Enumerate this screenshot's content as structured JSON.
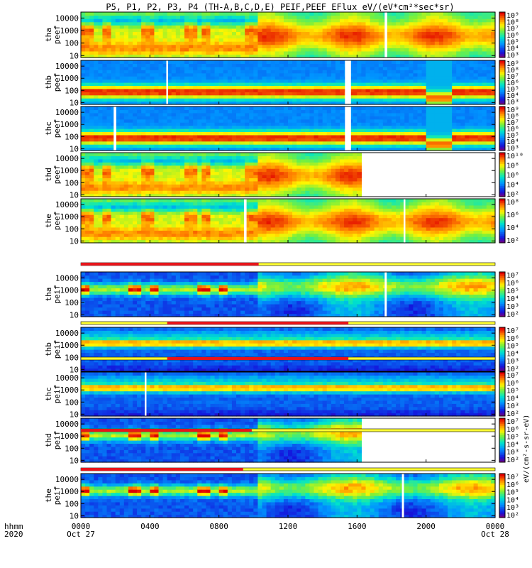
{
  "chart_data": {
    "type": "heatmap",
    "title": "P5, P1, P2, P3, P4 (TH-A,B,C,D,E) PEIF,PEEF EFlux eV/(eV*cm²*sec*sr)",
    "x_axis": {
      "label_line1": "hhmm",
      "label_line2": "2020",
      "range_hours": [
        0,
        24
      ],
      "ticks": [
        {
          "hour": 0,
          "label": "0000",
          "sub": "Oct 27"
        },
        {
          "hour": 4,
          "label": "0400",
          "sub": ""
        },
        {
          "hour": 8,
          "label": "0800",
          "sub": ""
        },
        {
          "hour": 12,
          "label": "1200",
          "sub": ""
        },
        {
          "hour": 16,
          "label": "1600",
          "sub": ""
        },
        {
          "hour": 20,
          "label": "2000",
          "sub": ""
        },
        {
          "hour": 24,
          "label": "0000",
          "sub": "Oct 28"
        }
      ]
    },
    "y_axis": {
      "scale": "log",
      "range_eV": [
        7,
        30000
      ],
      "ticks": [
        {
          "value": 10,
          "label": "10"
        },
        {
          "value": 100,
          "label": "100"
        },
        {
          "value": 1000,
          "label": "1000"
        },
        {
          "value": 10000,
          "label": "10000"
        }
      ]
    },
    "colorbar_title": "eV/(cm²-s-sr-eV)",
    "panels": [
      {
        "probe": "tha",
        "product": "peef",
        "label1": "tha",
        "label2": "peef",
        "kind": "electron",
        "data_end_hour": 24,
        "gaps": [
          [
            17.6,
            17.75
          ]
        ],
        "cbar_ticks": [
          "10⁹",
          "10⁸",
          "10⁷",
          "10⁶",
          "10⁵",
          "10⁴",
          "10³"
        ]
      },
      {
        "probe": "thb",
        "product": "peef",
        "label1": "thb",
        "label2": "peef",
        "kind": "electron_steady",
        "data_end_hour": 24,
        "gaps": [
          [
            4.95,
            5.05
          ],
          [
            15.3,
            15.65
          ]
        ],
        "cbar_ticks": [
          "10⁹",
          "10⁸",
          "10⁷",
          "10⁶",
          "10⁵",
          "10⁴",
          "10³"
        ]
      },
      {
        "probe": "thc",
        "product": "peef",
        "label1": "thc",
        "label2": "peef",
        "kind": "electron_steady",
        "data_end_hour": 24,
        "gaps": [
          [
            1.9,
            2.05
          ],
          [
            15.3,
            15.65
          ]
        ],
        "cbar_ticks": [
          "10⁹",
          "10⁸",
          "10⁷",
          "10⁶",
          "10⁵",
          "10⁴",
          "10³"
        ]
      },
      {
        "probe": "thd",
        "product": "peef",
        "label1": "thd",
        "label2": "peef",
        "kind": "electron",
        "data_end_hour": 16.3,
        "gaps": [],
        "cbar_ticks": [
          "10¹⁰",
          "10⁸",
          "10⁶",
          "10⁴",
          "10²"
        ]
      },
      {
        "probe": "the",
        "product": "peef",
        "label1": "the",
        "label2": "peef",
        "kind": "electron",
        "data_end_hour": 24,
        "gaps": [
          [
            9.45,
            9.6
          ],
          [
            18.7,
            18.8
          ]
        ],
        "cbar_ticks": [
          "10⁸",
          "10⁶",
          "10⁴",
          "10²"
        ]
      },
      {
        "probe": "tha",
        "product": "peif",
        "label1": "tha",
        "label2": "peif",
        "kind": "ion",
        "data_end_hour": 24,
        "gaps": [
          [
            17.6,
            17.72
          ]
        ],
        "cbar_ticks": [
          "10⁷",
          "10⁶",
          "10⁵",
          "10⁴",
          "10³",
          "10²"
        ]
      },
      {
        "probe": "thb",
        "product": "peif",
        "label1": "thb",
        "label2": "peif",
        "kind": "ion_steady",
        "data_end_hour": 24,
        "gaps": [],
        "cbar_ticks": [
          "10⁷",
          "10⁶",
          "10⁵",
          "10⁴",
          "10³",
          "10²"
        ]
      },
      {
        "probe": "thc",
        "product": "peif",
        "label1": "thc",
        "label2": "peif",
        "kind": "ion_steady",
        "data_end_hour": 24,
        "gaps": [
          [
            3.7,
            3.8
          ]
        ],
        "cbar_ticks": [
          "10⁷",
          "10⁶",
          "10⁵",
          "10⁴",
          "10³",
          "10²"
        ]
      },
      {
        "probe": "thd",
        "product": "peif",
        "label1": "thd",
        "label2": "peif",
        "kind": "ion",
        "data_end_hour": 16.3,
        "gaps": [],
        "cbar_ticks": [
          "10⁷",
          "10⁶",
          "10⁵",
          "10⁴",
          "10³",
          "10²"
        ]
      },
      {
        "probe": "the",
        "product": "peif",
        "label1": "the",
        "label2": "peif",
        "kind": "ion",
        "data_end_hour": 24,
        "gaps": [
          [
            18.6,
            18.72
          ]
        ],
        "cbar_ticks": [
          "10⁷",
          "10⁶",
          "10⁵",
          "10⁴",
          "10³",
          "10²"
        ]
      }
    ],
    "mode_bars": [
      {
        "after_panel": 5,
        "red": [
          [
            0,
            10.3
          ]
        ]
      },
      {
        "after_panel": 6,
        "red": [
          [
            5.0,
            15.5
          ]
        ]
      },
      {
        "after_panel": 7,
        "red": [
          [
            5.0,
            15.5
          ]
        ]
      },
      {
        "after_panel": 8,
        "red": [
          [
            0,
            9.9
          ]
        ]
      },
      {
        "after_panel": 9,
        "red": [
          [
            0,
            9.4
          ]
        ]
      }
    ],
    "colors": {
      "bar_red": "#e8141a",
      "bar_yellow": "#ffff33",
      "background": "#ffffff"
    }
  }
}
